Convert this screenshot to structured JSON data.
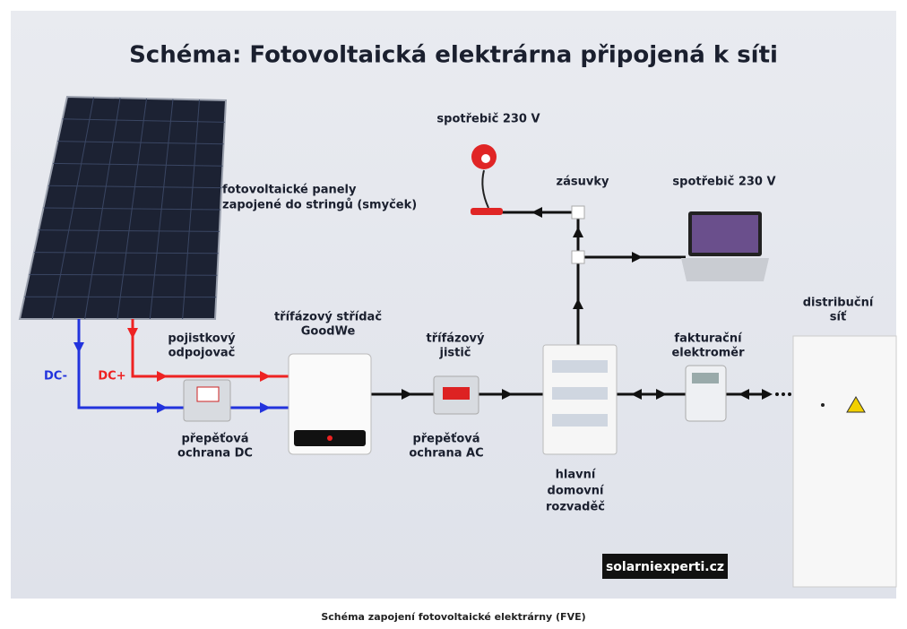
{
  "title": "Schéma: Fotovoltaická elektrárna připojená k síti",
  "labels": {
    "panels": [
      "fotovoltaické panely",
      "zapojené do stringů (smyček)"
    ],
    "lamp": [
      "spotřebič 230 V"
    ],
    "sockets": [
      "zásuvky"
    ],
    "laptop": [
      "spotřebič 230 V"
    ],
    "dc_minus": [
      "DC-"
    ],
    "dc_plus": [
      "DC+"
    ],
    "fuse": [
      "pojistkový",
      "odpojovač"
    ],
    "inverter": [
      "třífázový střídač",
      "GoodWe"
    ],
    "breaker": [
      "třífázový",
      "jistič"
    ],
    "grid": [
      "distribuční",
      "síť"
    ],
    "meter": [
      "fakturační",
      "elektroměr"
    ],
    "surge_dc": [
      "přepěťová",
      "ochrana DC"
    ],
    "surge_ac": [
      "přepěťová",
      "ochrana AC"
    ],
    "board": [
      "hlavní",
      "domovní",
      "rozvaděč"
    ]
  },
  "watermark": "solarniexperti.cz",
  "caption": "Schéma zapojení fotovoltaické elektrárny (FVE)"
}
